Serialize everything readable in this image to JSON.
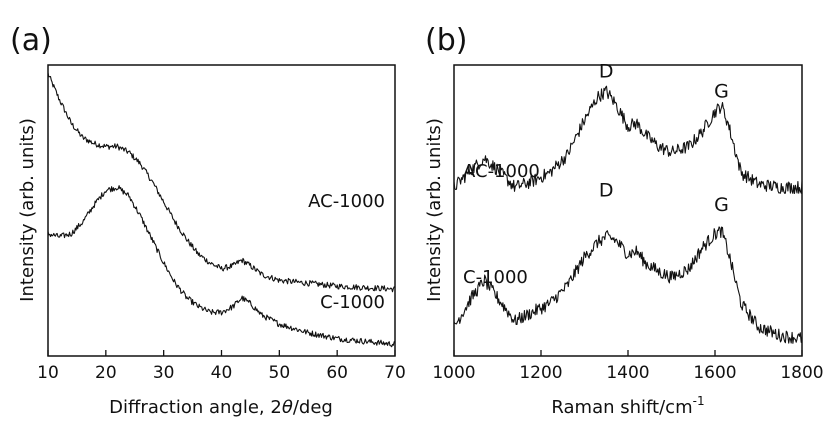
{
  "chart_data": [
    {
      "type": "line",
      "panel_label": "(a)",
      "xlabel_main": "Diffraction angle, 2",
      "xlabel_theta": "θ",
      "xlabel_unit": "/deg",
      "ylabel": "Intensity (arb. units)",
      "xlim": [
        10,
        70
      ],
      "xticks": [
        "10",
        "20",
        "30",
        "40",
        "50",
        "60",
        "70"
      ],
      "grid": false,
      "series": [
        {
          "name": "AC-1000",
          "x": [
            10,
            12,
            14,
            16,
            18,
            20,
            22,
            24,
            26,
            28,
            30,
            32,
            34,
            36,
            38,
            40,
            42,
            43.5,
            45,
            47,
            50,
            55,
            60,
            65,
            70
          ],
          "y": [
            0.97,
            0.88,
            0.8,
            0.75,
            0.73,
            0.72,
            0.72,
            0.7,
            0.66,
            0.6,
            0.53,
            0.46,
            0.4,
            0.35,
            0.32,
            0.3,
            0.31,
            0.33,
            0.31,
            0.28,
            0.26,
            0.25,
            0.24,
            0.235,
            0.23
          ]
        },
        {
          "name": "C-1000",
          "x": [
            10,
            12,
            14,
            16,
            18,
            20,
            22,
            24,
            26,
            28,
            30,
            32,
            34,
            36,
            38,
            40,
            42,
            43.5,
            45,
            47,
            50,
            55,
            60,
            65,
            70
          ],
          "y": [
            0.42,
            0.41,
            0.42,
            0.46,
            0.52,
            0.57,
            0.58,
            0.55,
            0.48,
            0.4,
            0.32,
            0.25,
            0.2,
            0.17,
            0.15,
            0.15,
            0.17,
            0.2,
            0.18,
            0.14,
            0.11,
            0.08,
            0.06,
            0.05,
            0.04
          ]
        }
      ]
    },
    {
      "type": "line",
      "panel_label": "(b)",
      "xlabel_main": "Raman shift/cm",
      "xlabel_sup": "-1",
      "ylabel": "Intensity (arb. units)",
      "xlim": [
        1000,
        1800
      ],
      "xticks": [
        "1000",
        "1200",
        "1400",
        "1600",
        "1800"
      ],
      "grid": false,
      "peak_labels": [
        {
          "text": "D",
          "x": 1350,
          "y": 0.93
        },
        {
          "text": "G",
          "x": 1615,
          "y": 0.86
        },
        {
          "text": "D",
          "x": 1350,
          "y": 0.52
        },
        {
          "text": "G",
          "x": 1615,
          "y": 0.47
        }
      ],
      "series": [
        {
          "name": "AC-1000",
          "x": [
            1000,
            1040,
            1070,
            1100,
            1140,
            1180,
            1220,
            1260,
            1300,
            1330,
            1350,
            1370,
            1400,
            1420,
            1440,
            1470,
            1500,
            1540,
            1570,
            1600,
            1615,
            1630,
            1660,
            1700,
            1750,
            1800
          ],
          "y": [
            0.58,
            0.64,
            0.68,
            0.64,
            0.58,
            0.6,
            0.63,
            0.69,
            0.81,
            0.89,
            0.91,
            0.87,
            0.79,
            0.8,
            0.76,
            0.72,
            0.7,
            0.72,
            0.77,
            0.84,
            0.86,
            0.8,
            0.63,
            0.59,
            0.58,
            0.58
          ]
        },
        {
          "name": "C-1000",
          "x": [
            1000,
            1040,
            1070,
            1100,
            1140,
            1180,
            1220,
            1260,
            1300,
            1330,
            1350,
            1370,
            1400,
            1420,
            1440,
            1470,
            1500,
            1540,
            1570,
            1600,
            1615,
            1630,
            1660,
            1700,
            1750,
            1800
          ],
          "y": [
            0.1,
            0.2,
            0.26,
            0.2,
            0.12,
            0.15,
            0.18,
            0.24,
            0.34,
            0.39,
            0.41,
            0.4,
            0.35,
            0.36,
            0.32,
            0.29,
            0.27,
            0.3,
            0.37,
            0.42,
            0.43,
            0.36,
            0.18,
            0.1,
            0.07,
            0.06
          ]
        }
      ]
    }
  ]
}
